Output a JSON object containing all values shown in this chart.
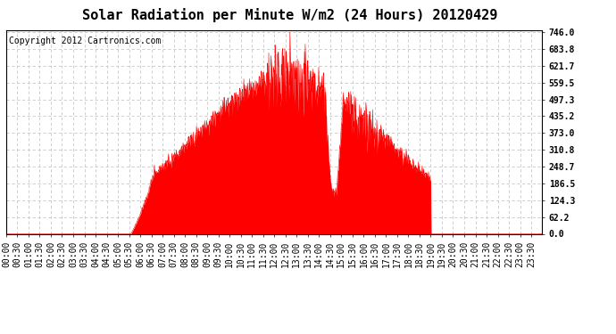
{
  "title": "Solar Radiation per Minute W/m2 (24 Hours) 20120429",
  "copyright_text": "Copyright 2012 Cartronics.com",
  "background_color": "#ffffff",
  "plot_background": "#ffffff",
  "fill_color": "#ff0000",
  "line_color": "#ff0000",
  "dashed_line_color": "#ff0000",
  "grid_color": "#c8c8c8",
  "ytick_labels": [
    0.0,
    62.2,
    124.3,
    186.5,
    248.7,
    310.8,
    373.0,
    435.2,
    497.3,
    559.5,
    621.7,
    683.8,
    746.0
  ],
  "ymax": 746.0,
  "ymin": 0.0,
  "total_minutes": 1440,
  "x_tick_interval": 30,
  "title_fontsize": 11,
  "tick_fontsize": 7,
  "copyright_fontsize": 7
}
